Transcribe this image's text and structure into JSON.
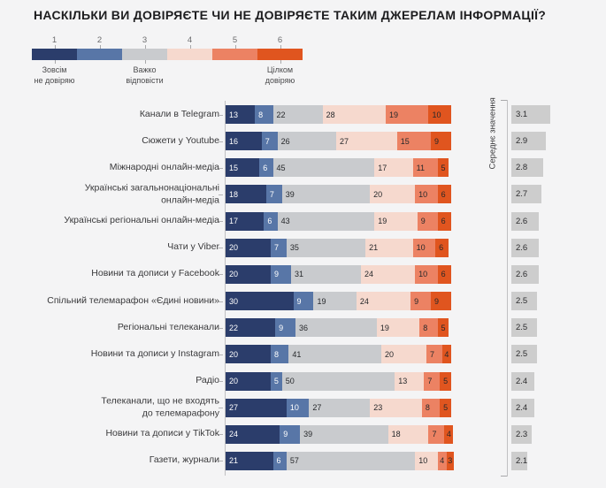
{
  "title": "НАСКІЛЬКИ ВИ ДОВІРЯЄТЕ ЧИ НЕ ДОВІРЯЄТЕ ТАКИМ ДЖЕРЕЛАМ ІНФОРМАЦІЇ?",
  "mean_axis_label": "Середнє значення",
  "legend": {
    "scale": [
      "1",
      "2",
      "3",
      "4",
      "5",
      "6"
    ],
    "colors": [
      "#2b3d6b",
      "#5876a7",
      "#c9cbce",
      "#f6d9ce",
      "#ec8263",
      "#e0551f"
    ],
    "anchors": [
      {
        "segment": 1,
        "label": "Зовсім\nне довіряю"
      },
      {
        "segment": 3,
        "label": "Важко\nвідповісти"
      },
      {
        "segment": 6,
        "label": "Цілком\nдовіряю"
      }
    ]
  },
  "chart_data": {
    "type": "bar",
    "stacked": true,
    "orientation": "horizontal",
    "title": "НАСКІЛЬКИ ВИ ДОВІРЯЄТЕ ЧИ НЕ ДОВІРЯЄТЕ ТАКИМ ДЖЕРЕЛАМ ІНФОРМАЦІЇ?",
    "x_max": 100,
    "grid": false,
    "legend_position": "top",
    "categories": [
      "Канали в Telegram",
      "Сюжети у Youtube",
      "Міжнародні онлайн-медіа",
      "Українські загальнонаціональні\nонлайн-медіа",
      "Українські регіональні онлайн-медіа",
      "Чати у Viber",
      "Новини та дописи у Facebook",
      "Спільний телемарафон «Єдині новини»",
      "Регіональні телеканали",
      "Новини та дописи у Instagram",
      "Радіо",
      "Телеканали, що не входять\nдо телемарафону",
      "Новини та дописи у TikTok",
      "Газети, журнали"
    ],
    "series": [
      {
        "name": "1 — Зовсім не довіряю",
        "color": "#2b3d6b",
        "values": [
          13,
          16,
          15,
          18,
          17,
          20,
          20,
          30,
          22,
          20,
          20,
          27,
          24,
          21
        ]
      },
      {
        "name": "2",
        "color": "#5876a7",
        "values": [
          8,
          7,
          6,
          7,
          6,
          7,
          9,
          9,
          9,
          8,
          5,
          10,
          9,
          6
        ]
      },
      {
        "name": "3 — Важко відповісти",
        "color": "#c9cbce",
        "values": [
          22,
          26,
          45,
          39,
          43,
          35,
          31,
          19,
          36,
          41,
          50,
          27,
          39,
          57
        ]
      },
      {
        "name": "4",
        "color": "#f6d9ce",
        "values": [
          28,
          27,
          17,
          20,
          19,
          21,
          24,
          24,
          19,
          20,
          13,
          23,
          18,
          10
        ]
      },
      {
        "name": "5",
        "color": "#ec8263",
        "values": [
          19,
          15,
          11,
          10,
          9,
          10,
          10,
          9,
          8,
          7,
          7,
          8,
          7,
          4
        ]
      },
      {
        "name": "6 — Цілком довіряю",
        "color": "#e0551f",
        "values": [
          10,
          9,
          5,
          6,
          6,
          6,
          6,
          9,
          5,
          4,
          5,
          5,
          4,
          3
        ]
      }
    ],
    "means": {
      "label": "Середнє значення",
      "values": [
        3.1,
        2.9,
        2.8,
        2.7,
        2.6,
        2.6,
        2.6,
        2.5,
        2.5,
        2.5,
        2.4,
        2.4,
        2.3,
        2.1
      ]
    }
  }
}
